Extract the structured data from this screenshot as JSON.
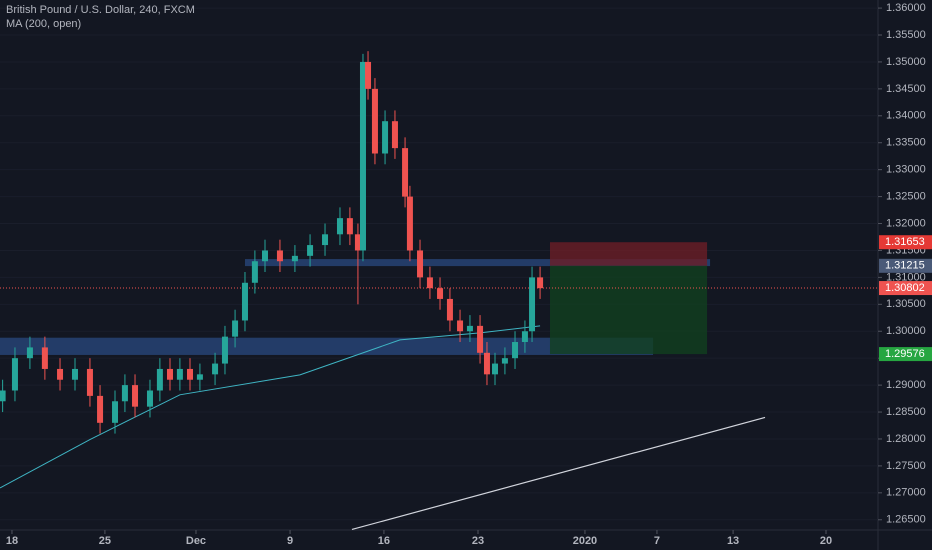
{
  "chart_data": {
    "type": "candlestick",
    "title": "British Pound / U.S. Dollar, 240, FXCM",
    "indicator_label": "MA (200, open)",
    "background": "#131722",
    "up_color": "#26a69a",
    "down_color": "#ef5350",
    "xlim": [
      -0.64,
      46.31
    ],
    "ylim": [
      1.2631,
      1.3615
    ],
    "xticks": [
      {
        "value": 0,
        "label": "18"
      },
      {
        "value": 4.97,
        "label": "25"
      },
      {
        "value": 9.84,
        "label": "Dec"
      },
      {
        "value": 14.87,
        "label": "9"
      },
      {
        "value": 19.89,
        "label": "16"
      },
      {
        "value": 24.92,
        "label": "23"
      },
      {
        "value": 30.64,
        "label": "2020"
      },
      {
        "value": 34.49,
        "label": "7"
      },
      {
        "value": 38.56,
        "label": "13"
      },
      {
        "value": 43.53,
        "label": "20"
      }
    ],
    "yticks": [
      {
        "value": 1.265,
        "label": "1.26500"
      },
      {
        "value": 1.27,
        "label": "1.27000"
      },
      {
        "value": 1.275,
        "label": "1.27500"
      },
      {
        "value": 1.28,
        "label": "1.28000"
      },
      {
        "value": 1.285,
        "label": "1.28500"
      },
      {
        "value": 1.29,
        "label": "1.29000"
      },
      {
        "value": 1.295,
        "label": "1.29500"
      },
      {
        "value": 1.3,
        "label": "1.30000"
      },
      {
        "value": 1.305,
        "label": "1.30500"
      },
      {
        "value": 1.31,
        "label": "1.31000"
      },
      {
        "value": 1.315,
        "label": "1.31500"
      },
      {
        "value": 1.32,
        "label": "1.32000"
      },
      {
        "value": 1.325,
        "label": "1.32500"
      },
      {
        "value": 1.33,
        "label": "1.33000"
      },
      {
        "value": 1.335,
        "label": "1.33500"
      },
      {
        "value": 1.34,
        "label": "1.34000"
      },
      {
        "value": 1.345,
        "label": "1.34500"
      },
      {
        "value": 1.35,
        "label": "1.35000"
      },
      {
        "value": 1.355,
        "label": "1.35500"
      },
      {
        "value": 1.36,
        "label": "1.36000"
      }
    ],
    "x": [
      -0.5,
      0.16,
      0.96,
      1.76,
      2.57,
      3.37,
      4.17,
      4.71,
      5.51,
      6.04,
      6.58,
      7.38,
      7.91,
      8.45,
      8.98,
      9.52,
      10.05,
      10.86,
      11.39,
      11.93,
      12.46,
      12.99,
      13.53,
      14.33,
      15.13,
      15.94,
      16.74,
      17.54,
      18.07,
      18.5,
      18.77,
      19.04,
      19.41,
      19.95,
      20.48,
      21.02,
      21.28,
      21.82,
      22.35,
      22.89,
      23.42,
      23.96,
      24.49,
      25.03,
      25.4,
      25.83,
      26.36,
      26.9,
      27.43,
      27.81,
      28.24
    ],
    "open": [
      1.287,
      1.289,
      1.295,
      1.297,
      1.293,
      1.291,
      1.293,
      1.288,
      1.283,
      1.287,
      1.29,
      1.286,
      1.289,
      1.293,
      1.291,
      1.293,
      1.291,
      1.292,
      1.294,
      1.299,
      1.302,
      1.309,
      1.313,
      1.315,
      1.313,
      1.314,
      1.316,
      1.318,
      1.321,
      1.318,
      1.315,
      1.35,
      1.345,
      1.333,
      1.339,
      1.334,
      1.325,
      1.315,
      1.31,
      1.308,
      1.306,
      1.302,
      1.3,
      1.301,
      1.296,
      1.292,
      1.294,
      1.295,
      1.298,
      1.3,
      1.31
    ],
    "high": [
      1.291,
      1.297,
      1.299,
      1.299,
      1.295,
      1.295,
      1.295,
      1.29,
      1.289,
      1.292,
      1.292,
      1.291,
      1.295,
      1.295,
      1.295,
      1.295,
      1.294,
      1.296,
      1.301,
      1.304,
      1.311,
      1.315,
      1.317,
      1.317,
      1.316,
      1.318,
      1.32,
      1.323,
      1.323,
      1.32,
      1.3515,
      1.352,
      1.347,
      1.341,
      1.341,
      1.336,
      1.327,
      1.317,
      1.312,
      1.31,
      1.308,
      1.304,
      1.303,
      1.303,
      1.298,
      1.296,
      1.297,
      1.3,
      1.302,
      1.312,
      1.312
    ],
    "low": [
      1.285,
      1.287,
      1.293,
      1.291,
      1.289,
      1.289,
      1.286,
      1.281,
      1.281,
      1.285,
      1.284,
      1.284,
      1.287,
      1.289,
      1.289,
      1.289,
      1.289,
      1.29,
      1.292,
      1.297,
      1.3,
      1.307,
      1.311,
      1.311,
      1.311,
      1.312,
      1.314,
      1.316,
      1.316,
      1.305,
      1.313,
      1.343,
      1.331,
      1.331,
      1.332,
      1.323,
      1.313,
      1.308,
      1.306,
      1.304,
      1.3,
      1.298,
      1.298,
      1.294,
      1.29,
      1.29,
      1.292,
      1.293,
      1.296,
      1.298,
      1.306
    ],
    "close": [
      1.289,
      1.295,
      1.297,
      1.293,
      1.291,
      1.293,
      1.288,
      1.283,
      1.287,
      1.29,
      1.286,
      1.289,
      1.293,
      1.291,
      1.293,
      1.291,
      1.292,
      1.294,
      1.299,
      1.302,
      1.309,
      1.313,
      1.315,
      1.313,
      1.314,
      1.316,
      1.318,
      1.321,
      1.318,
      1.315,
      1.35,
      1.345,
      1.333,
      1.339,
      1.334,
      1.325,
      1.315,
      1.31,
      1.308,
      1.306,
      1.302,
      1.3,
      1.301,
      1.296,
      1.292,
      1.294,
      1.295,
      1.298,
      1.3,
      1.31,
      1.308
    ],
    "ma": {
      "color": "#3fb5c4",
      "x": [
        -0.64,
        4.17,
        8.98,
        15.4,
        20.75,
        25.03,
        28.24
      ],
      "values": [
        1.2709,
        1.2799,
        1.2882,
        1.2919,
        1.2984,
        1.2997,
        1.301
      ]
    },
    "trend_line": {
      "color": "#d1d4dc",
      "x": [
        18.18,
        40.27
      ],
      "values": [
        1.2632,
        1.284
      ]
    },
    "zones": [
      {
        "color": "#2a4a80",
        "x": [
          -0.64,
          34.28
        ],
        "values": [
          1.2956,
          1.2988
        ]
      },
      {
        "color": "#2a4a80",
        "x": [
          12.46,
          37.33
        ],
        "values": [
          1.3121,
          1.3134
        ]
      }
    ],
    "position": {
      "x": [
        28.77,
        37.17
      ],
      "entry": 1.31215,
      "stop": 1.31653,
      "target": 1.29576,
      "stop_color": "#6b1e27",
      "target_color": "#12401f"
    },
    "last_price": {
      "value": 1.30802,
      "color": "#ef5350"
    },
    "price_labels": [
      {
        "value": 1.31653,
        "color": "#e53935"
      },
      {
        "value": 1.31215,
        "color": "#4a5a78"
      },
      {
        "value": 1.30802,
        "color": "#ef5350"
      },
      {
        "value": 1.29576,
        "color": "#26a641"
      }
    ]
  }
}
